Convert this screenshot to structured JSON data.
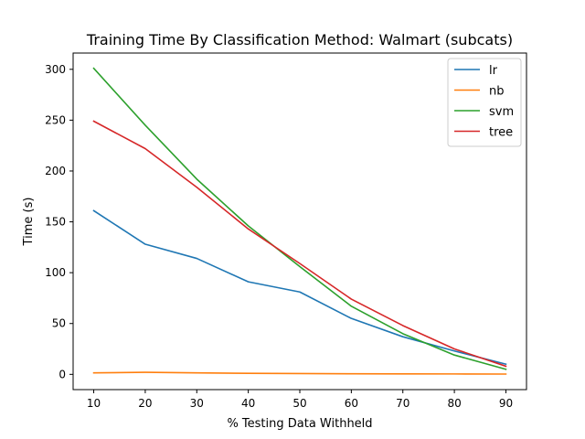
{
  "chart_data": {
    "type": "line",
    "title": "Training Time By Classification Method: Walmart (subcats)",
    "xlabel": "% Testing Data Withheld",
    "ylabel": "Time (s)",
    "x": [
      10,
      20,
      30,
      40,
      50,
      60,
      70,
      80,
      90
    ],
    "xticks": [
      10,
      20,
      30,
      40,
      50,
      60,
      70,
      80,
      90
    ],
    "yticks": [
      0,
      50,
      100,
      150,
      200,
      250,
      300
    ],
    "xlim": [
      6,
      94
    ],
    "ylim": [
      -15,
      316
    ],
    "grid": false,
    "legend_position": "top-right",
    "series": [
      {
        "name": "lr",
        "color": "#1f77b4",
        "values": [
          161,
          128,
          114,
          91,
          81,
          55,
          37,
          23,
          10
        ]
      },
      {
        "name": "nb",
        "color": "#ff7f0e",
        "values": [
          1.5,
          2,
          1.5,
          1,
          0.8,
          0.6,
          0.5,
          0.4,
          0.3
        ]
      },
      {
        "name": "svm",
        "color": "#2ca02c",
        "values": [
          301,
          245,
          192,
          146,
          106,
          67,
          40,
          19,
          5
        ]
      },
      {
        "name": "tree",
        "color": "#d62728",
        "values": [
          249,
          222,
          184,
          143,
          109,
          74,
          48,
          25,
          8
        ]
      }
    ]
  }
}
